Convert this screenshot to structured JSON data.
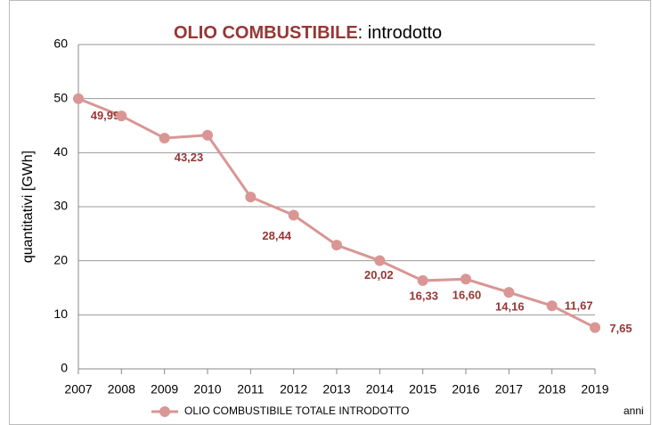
{
  "chart_data": {
    "type": "line",
    "title_parts": [
      "OLIO COMBUSTIBILE",
      ": introdotto"
    ],
    "y_label": "quantitativi [GWh]",
    "x_label": "anni",
    "categories": [
      "2007",
      "2008",
      "2009",
      "2010",
      "2011",
      "2012",
      "2013",
      "2014",
      "2015",
      "2016",
      "2017",
      "2018",
      "2019"
    ],
    "series": [
      {
        "name": "OLIO COMBUSTIBILE TOTALE INTRODOTTO",
        "color": "#d99694",
        "values": [
          49.99,
          46.8,
          42.7,
          43.23,
          31.8,
          28.44,
          22.9,
          20.02,
          16.33,
          16.6,
          14.16,
          11.67,
          7.65
        ],
        "value_labels": [
          "49,99",
          null,
          null,
          "43,23",
          null,
          "28,44",
          null,
          "20,02",
          "16,33",
          "16,60",
          "14,16",
          "11,67",
          "7,65"
        ]
      }
    ],
    "ylim": [
      0,
      60
    ],
    "yticks": [
      0,
      10,
      20,
      30,
      40,
      50,
      60
    ],
    "grid": true,
    "legend": "bottom"
  }
}
